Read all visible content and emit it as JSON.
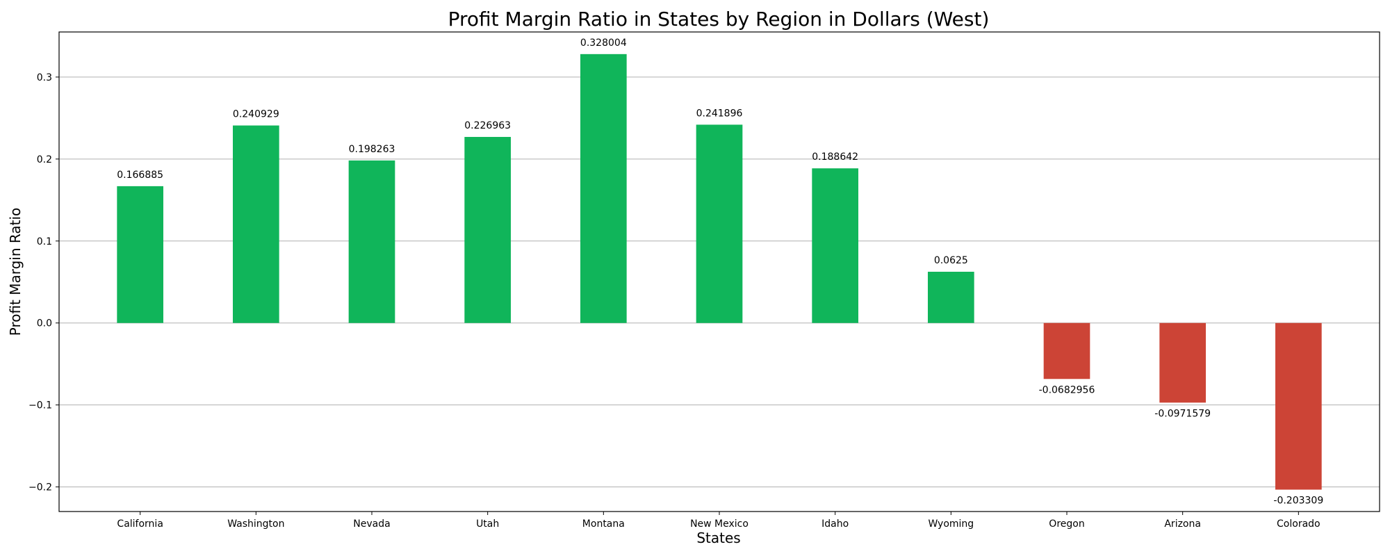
{
  "chart_data": {
    "type": "bar",
    "title": "Profit Margin Ratio in States by Region in Dollars (West)",
    "xlabel": "States",
    "ylabel": "Profit Margin Ratio",
    "categories": [
      "California",
      "Washington",
      "Nevada",
      "Utah",
      "Montana",
      "New Mexico",
      "Idaho",
      "Wyoming",
      "Oregon",
      "Arizona",
      "Colorado"
    ],
    "values": [
      0.166885,
      0.240929,
      0.198263,
      0.226963,
      0.328004,
      0.241896,
      0.188642,
      0.0625,
      -0.0682956,
      -0.0971579,
      -0.203309
    ],
    "value_labels": [
      "0.166885",
      "0.240929",
      "0.198263",
      "0.226963",
      "0.328004",
      "0.241896",
      "0.188642",
      "0.0625",
      "-0.0682956",
      "-0.0971579",
      "-0.203309"
    ],
    "ylim": [
      -0.23,
      0.355
    ],
    "yticks": [
      -0.2,
      -0.1,
      0.0,
      0.1,
      0.2,
      0.3
    ],
    "ytick_labels": [
      "−0.2",
      "−0.1",
      "0.0",
      "0.1",
      "0.2",
      "0.3"
    ],
    "grid": "horizontal",
    "colors": {
      "positive": "#10b55a",
      "negative": "#cc4436",
      "grid": "#b0b0b0"
    }
  }
}
